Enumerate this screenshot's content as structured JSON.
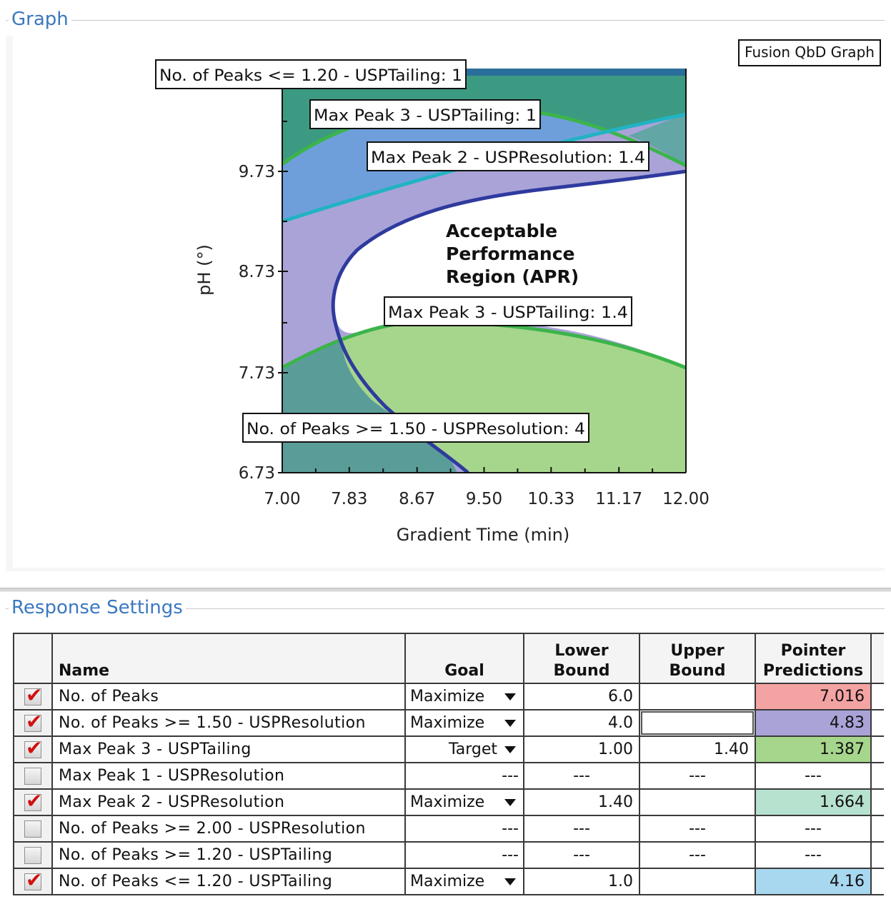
{
  "graph_section": {
    "legend": "Graph",
    "badge": "Fusion QbD Graph"
  },
  "chart_data": {
    "type": "contour",
    "xlabel": "Gradient Time (min)",
    "ylabel": "pH (°)",
    "x_ticks": [
      "7.00",
      "7.83",
      "8.67",
      "9.50",
      "10.33",
      "11.17",
      "12.00"
    ],
    "y_ticks": [
      "6.73",
      "7.73",
      "8.73",
      "9.73"
    ],
    "xlim": [
      7.0,
      12.0
    ],
    "ylim": [
      6.73,
      10.73
    ],
    "region_label": "Acceptable Performance Region (APR)",
    "region_label_lines": [
      "Acceptable",
      "Performance",
      "Region (APR)"
    ],
    "contour_labels": [
      "No. of Peaks <= 1.20 - USPTailing: 1",
      "Max Peak 3 - USPTailing: 1",
      "Max Peak 2 - USPResolution: 1.4",
      "Max Peak 3 - USPTailing: 1.4",
      "No. of Peaks >= 1.50 - USPResolution: 4"
    ],
    "colors": {
      "teal": "#3d9a82",
      "blue": "#6f9fdb",
      "lavender": "#a9a3d8",
      "green": "#a6d68c",
      "dark_teal": "#5a9d98",
      "apr": "#ffffff",
      "boundary": "#2f3a9e",
      "green_line": "#3cb44b",
      "cyan_line": "#21b3c3"
    }
  },
  "response_section": {
    "legend": "Response Settings",
    "columns": {
      "name": "Name",
      "goal": "Goal",
      "lower_1": "Lower",
      "lower_2": "Bound",
      "upper_1": "Upper",
      "upper_2": "Bound",
      "pred_1": "Pointer",
      "pred_2": "Predictions"
    },
    "rows": [
      {
        "checked": true,
        "name": "No. of Peaks",
        "goal": "Maximize",
        "lower": "6.0",
        "upper": "",
        "prediction": "7.016",
        "pred_color": "#f4a3a3"
      },
      {
        "checked": true,
        "name": "No. of Peaks >= 1.50 - USPResolution",
        "goal": "Maximize",
        "lower": "4.0",
        "upper": "",
        "prediction": "4.83",
        "pred_color": "#a9a3d8"
      },
      {
        "checked": true,
        "name": "Max Peak 3 - USPTailing",
        "goal": "Target",
        "lower": "1.00",
        "upper": "1.40",
        "prediction": "1.387",
        "pred_color": "#a6d68c"
      },
      {
        "checked": false,
        "name": "Max Peak 1 - USPResolution",
        "goal": "---",
        "lower": "---",
        "upper": "---",
        "prediction": "---",
        "pred_color": ""
      },
      {
        "checked": true,
        "name": "Max Peak 2 - USPResolution",
        "goal": "Maximize",
        "lower": "1.40",
        "upper": "",
        "prediction": "1.664",
        "pred_color": "#b6e2cf"
      },
      {
        "checked": false,
        "name": "No. of Peaks >= 2.00 - USPResolution",
        "goal": "---",
        "lower": "---",
        "upper": "---",
        "prediction": "---",
        "pred_color": ""
      },
      {
        "checked": false,
        "name": "No. of Peaks >= 1.20 - USPTailing",
        "goal": "---",
        "lower": "---",
        "upper": "---",
        "prediction": "---",
        "pred_color": ""
      },
      {
        "checked": true,
        "name": "No. of Peaks <= 1.20 - USPTailing",
        "goal": "Maximize",
        "lower": "1.0",
        "upper": "",
        "prediction": "4.16",
        "pred_color": "#a8d8f0"
      }
    ]
  }
}
